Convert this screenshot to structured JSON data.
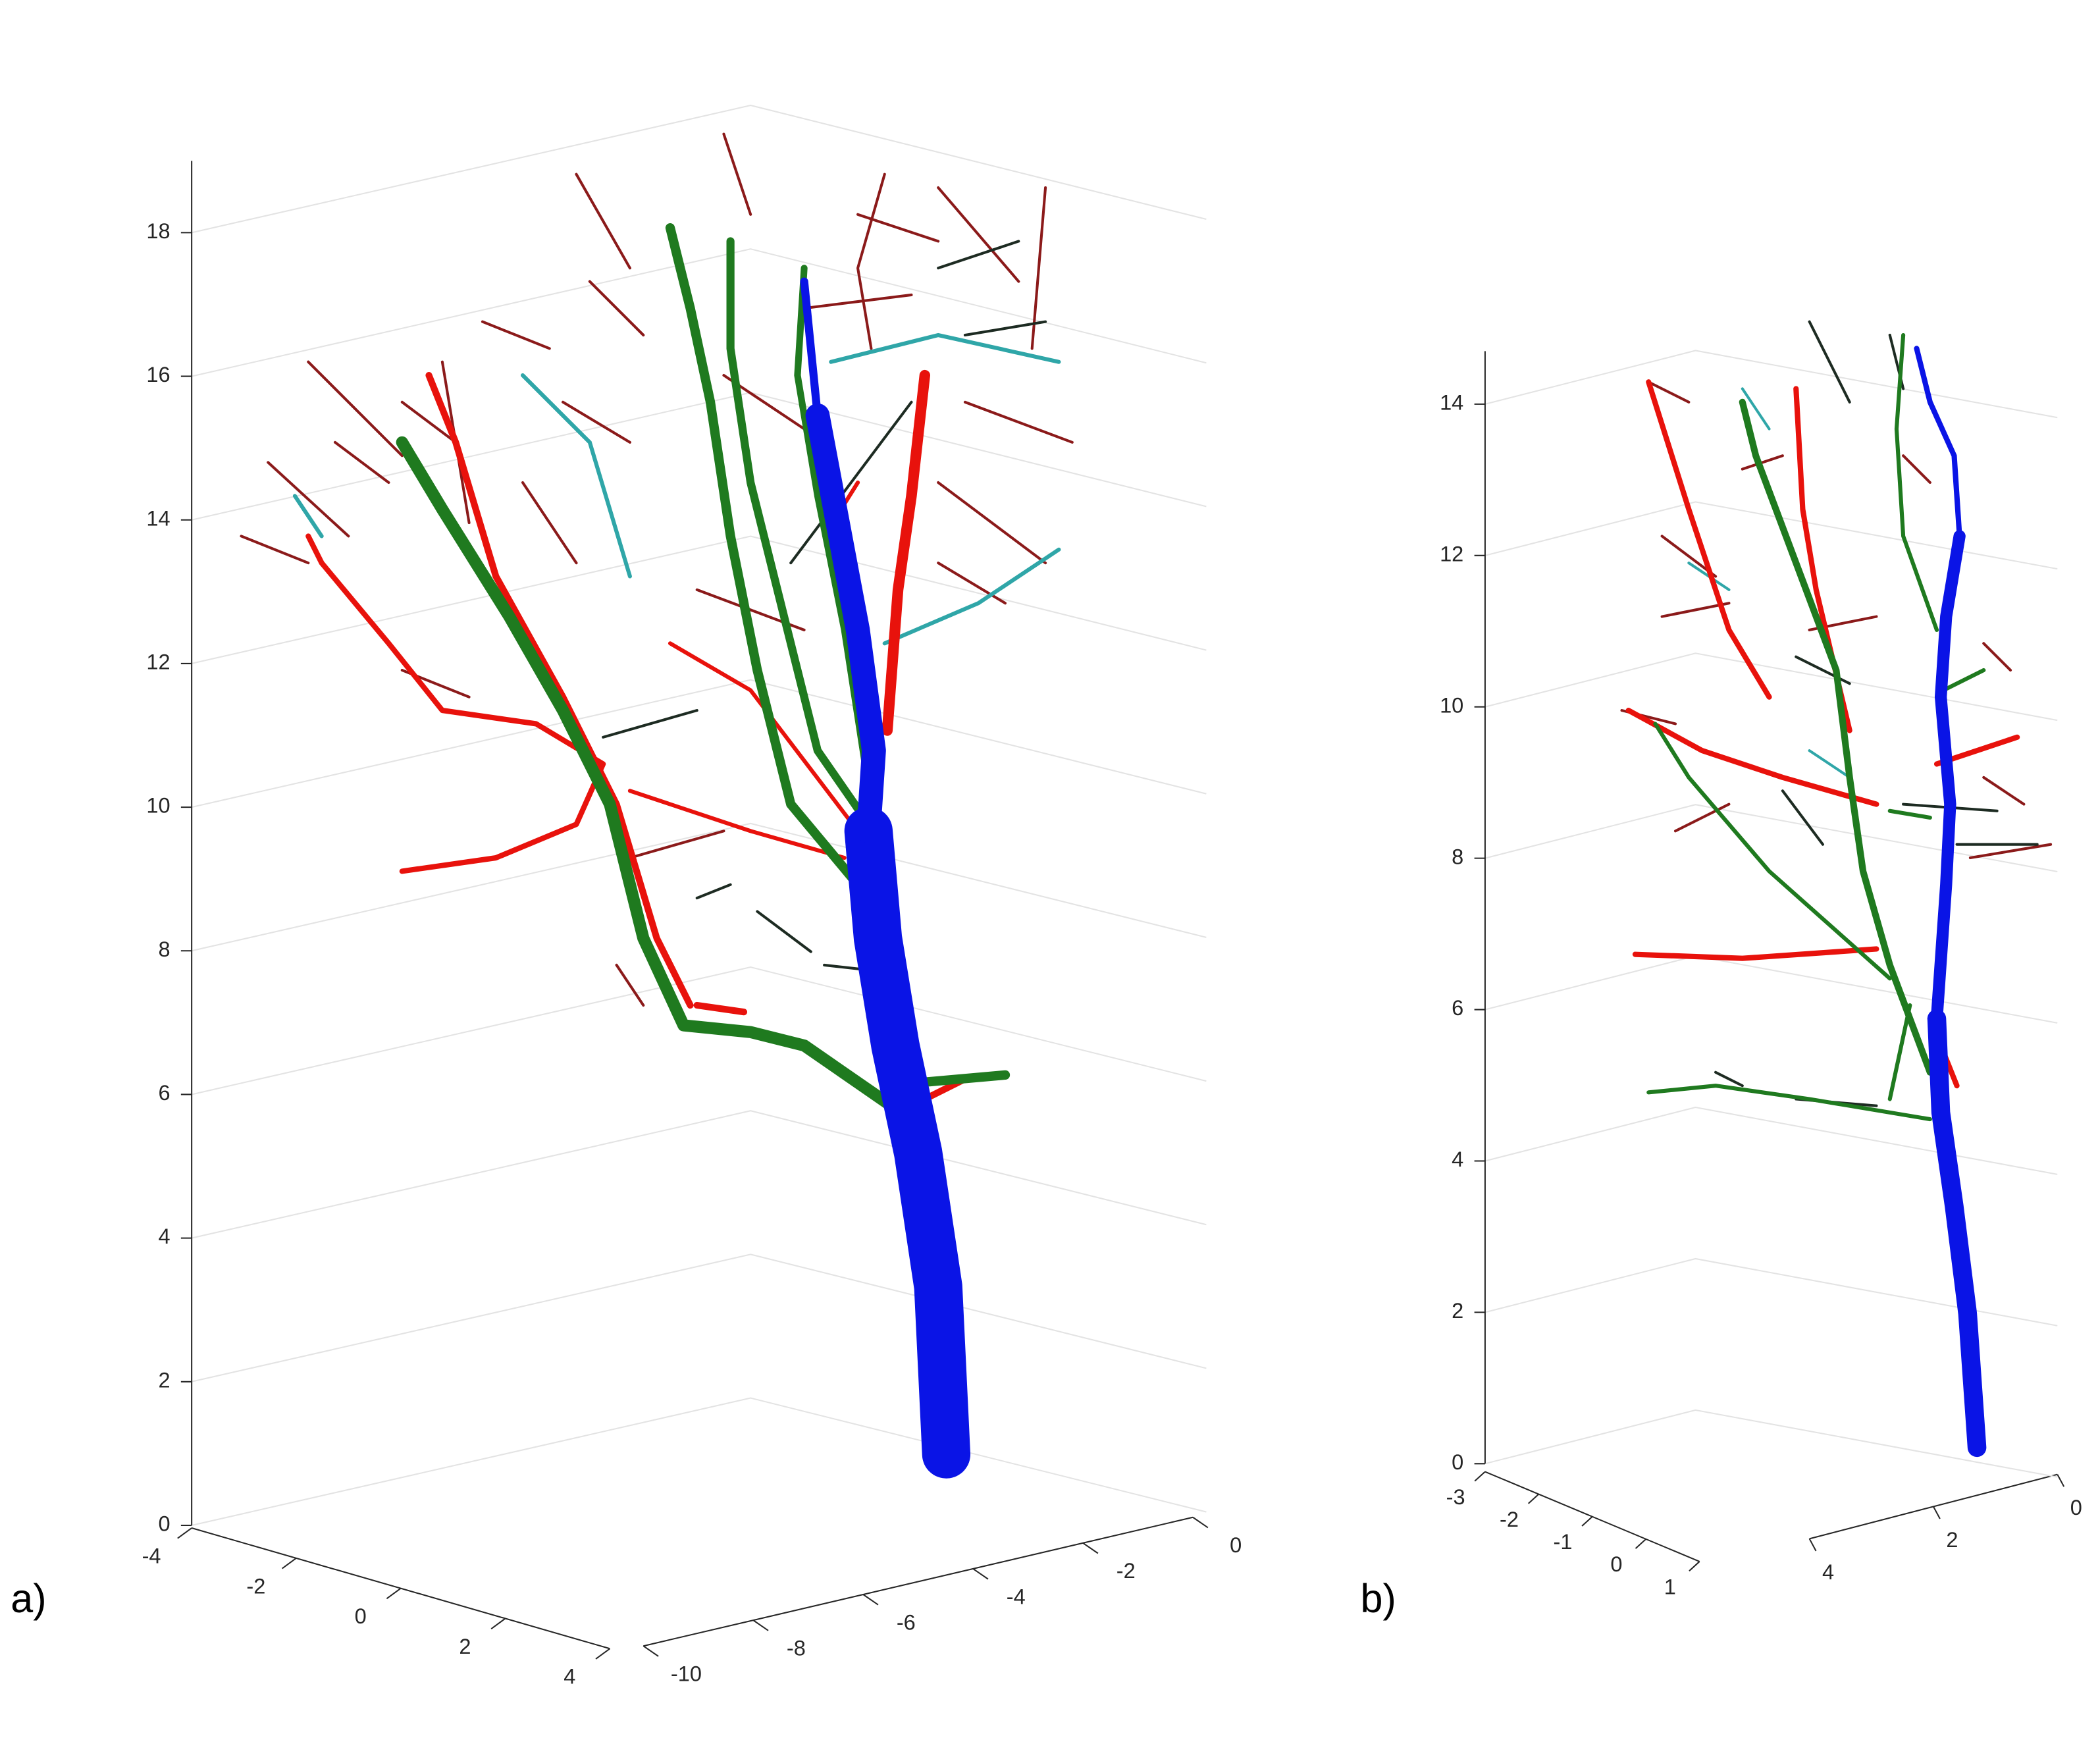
{
  "panels": [
    {
      "label": "a)",
      "zlim": [
        0,
        19
      ],
      "zticks": [
        0,
        2,
        4,
        6,
        8,
        10,
        12,
        14,
        16,
        18
      ],
      "xlim": [
        -4,
        4
      ],
      "xticks": [
        -4,
        -2,
        0,
        2,
        4
      ],
      "ylim": [
        -10,
        0
      ],
      "yticks": [
        -10,
        -8,
        -6,
        -4,
        -2,
        0
      ]
    },
    {
      "label": "b)",
      "zlim": [
        0,
        14.7
      ],
      "zticks": [
        0,
        2,
        4,
        6,
        8,
        10,
        12,
        14
      ],
      "xlim": [
        -3,
        1
      ],
      "xticks": [
        -3,
        -2,
        -1,
        0,
        1
      ],
      "ylim": [
        4,
        0
      ],
      "yticks": [
        4,
        2,
        0
      ]
    }
  ]
}
